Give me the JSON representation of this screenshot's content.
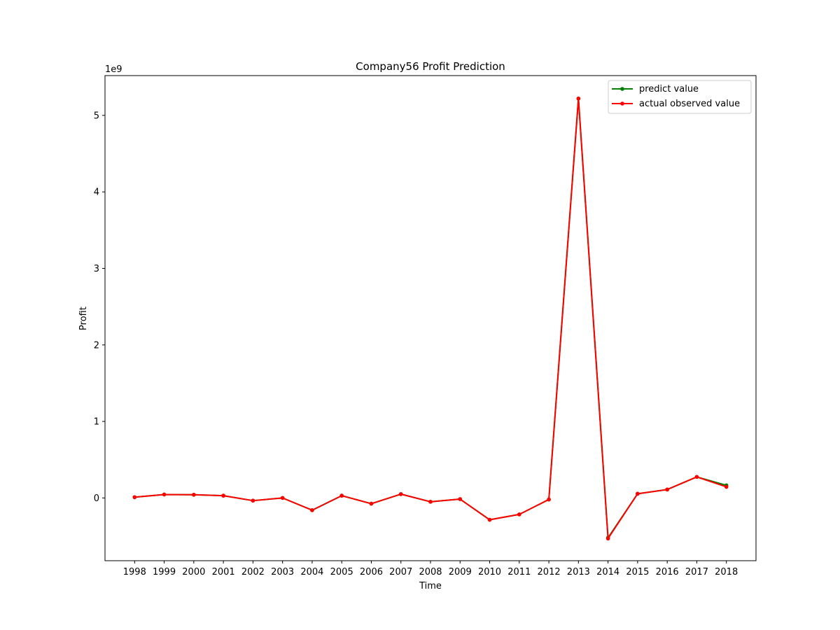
{
  "chart_data": {
    "type": "line",
    "title": "Company56 Profit Prediction",
    "xlabel": "Time",
    "ylabel": "Profit",
    "y_scale_label": "1e9",
    "x": [
      1998,
      1999,
      2000,
      2001,
      2002,
      2003,
      2004,
      2005,
      2006,
      2007,
      2008,
      2009,
      2010,
      2011,
      2012,
      2013,
      2014,
      2015,
      2016,
      2017,
      2018
    ],
    "ylim": [
      -0.82,
      5.52
    ],
    "yticks": [
      0,
      1,
      2,
      3,
      4,
      5
    ],
    "grid": false,
    "legend": "top-right",
    "series": [
      {
        "name": "predict value",
        "color": "#008000",
        "values": [
          0.01,
          0.045,
          0.042,
          0.03,
          -0.035,
          0.0,
          -0.16,
          0.03,
          -0.075,
          0.05,
          -0.05,
          -0.015,
          -0.285,
          -0.215,
          -0.02,
          5.22,
          -0.52,
          0.055,
          0.11,
          0.275,
          0.165
        ]
      },
      {
        "name": "actual observed value",
        "color": "#ff0000",
        "values": [
          0.01,
          0.045,
          0.042,
          0.03,
          -0.035,
          0.0,
          -0.16,
          0.03,
          -0.075,
          0.05,
          -0.05,
          -0.015,
          -0.285,
          -0.215,
          -0.02,
          5.22,
          -0.53,
          0.055,
          0.11,
          0.275,
          0.145
        ]
      }
    ]
  }
}
